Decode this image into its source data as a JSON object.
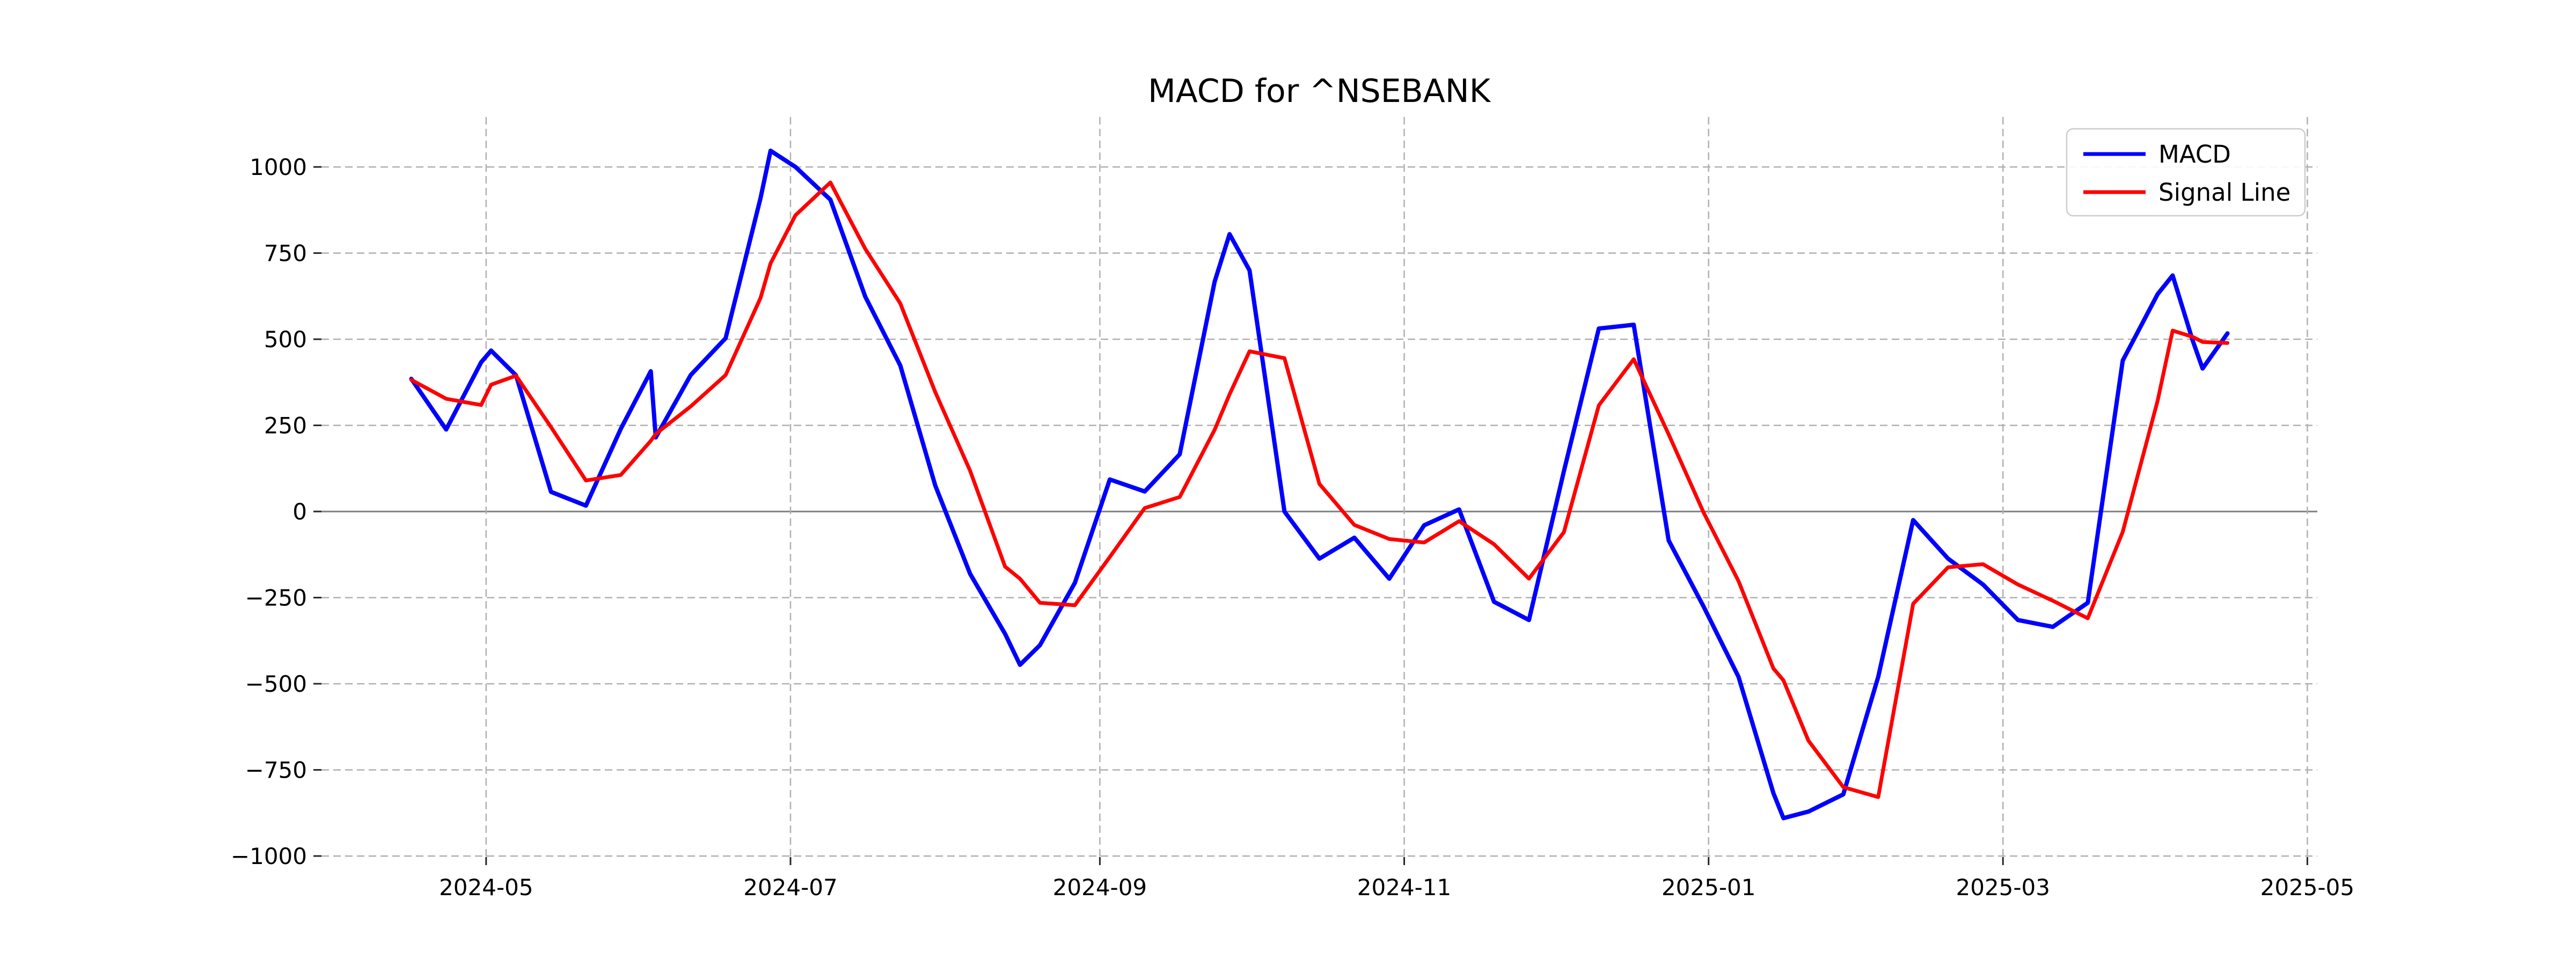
{
  "chart_data": {
    "type": "line",
    "title": "MACD for ^NSEBANK",
    "xlabel": "",
    "ylabel": "",
    "grid": "dashed",
    "zero_line": true,
    "legend_position": "upper right",
    "xlim": [
      "2024-03-29",
      "2025-05-03"
    ],
    "ylim": [
      -1003,
      1145
    ],
    "colors": {
      "macd": "#0000ff",
      "signal": "#ff0000",
      "grid": "#b0b0b0",
      "zero_line": "#7f7f7f",
      "background": "#ffffff",
      "text": "#000000",
      "legend_border": "#cccccc"
    },
    "y_ticks": {
      "values": [
        1000,
        750,
        500,
        250,
        0,
        -250,
        -500,
        -750,
        -1000
      ],
      "labels": [
        "1000",
        "750",
        "500",
        "250",
        "0",
        "−250",
        "−500",
        "−750",
        "−1000"
      ]
    },
    "x_ticks": [
      {
        "date": "2024-05-01",
        "label": "2024-05"
      },
      {
        "date": "2024-07-01",
        "label": "2024-07"
      },
      {
        "date": "2024-09-01",
        "label": "2024-09"
      },
      {
        "date": "2024-11-01",
        "label": "2024-11"
      },
      {
        "date": "2025-01-01",
        "label": "2025-01"
      },
      {
        "date": "2025-03-01",
        "label": "2025-03"
      },
      {
        "date": "2025-05-01",
        "label": "2025-05"
      }
    ],
    "x": [
      "2024-04-16",
      "2024-04-23",
      "2024-04-30",
      "2024-05-02",
      "2024-05-07",
      "2024-05-14",
      "2024-05-21",
      "2024-05-28",
      "2024-06-03",
      "2024-06-04",
      "2024-06-11",
      "2024-06-18",
      "2024-06-25",
      "2024-06-27",
      "2024-07-02",
      "2024-07-09",
      "2024-07-16",
      "2024-07-23",
      "2024-07-30",
      "2024-08-06",
      "2024-08-13",
      "2024-08-16",
      "2024-08-20",
      "2024-08-27",
      "2024-09-03",
      "2024-09-10",
      "2024-09-17",
      "2024-09-24",
      "2024-09-27",
      "2024-10-01",
      "2024-10-08",
      "2024-10-15",
      "2024-10-22",
      "2024-10-29",
      "2024-11-05",
      "2024-11-12",
      "2024-11-19",
      "2024-11-26",
      "2024-12-03",
      "2024-12-10",
      "2024-12-17",
      "2024-12-24",
      "2024-12-31",
      "2025-01-07",
      "2025-01-14",
      "2025-01-16",
      "2025-01-21",
      "2025-01-28",
      "2025-02-04",
      "2025-02-11",
      "2025-02-18",
      "2025-02-25",
      "2025-03-04",
      "2025-03-11",
      "2025-03-18",
      "2025-03-25",
      "2025-04-01",
      "2025-04-04",
      "2025-04-08",
      "2025-04-10",
      "2025-04-15"
    ],
    "series": [
      {
        "name": "MACD",
        "color": "#0000ff",
        "line_width": 8,
        "values": [
          385,
          238,
          433,
          467,
          395,
          57,
          17,
          240,
          407,
          215,
          396,
          503,
          910,
          1047,
          1000,
          905,
          623,
          424,
          76,
          -181,
          -355,
          -445,
          -388,
          -207,
          93,
          58,
          166,
          667,
          805,
          700,
          0,
          -137,
          -76,
          -195,
          -40,
          6,
          -262,
          -315,
          117,
          531,
          542,
          -84,
          -276,
          -480,
          -818,
          -890,
          -871,
          -821,
          -480,
          -25,
          -137,
          -212,
          -315,
          -335,
          -265,
          438,
          631,
          685,
          497,
          415,
          517
        ]
      },
      {
        "name": "Signal Line",
        "color": "#ff0000",
        "line_width": 7,
        "values": [
          382,
          327,
          309,
          368,
          394,
          245,
          90,
          106,
          205,
          225,
          305,
          396,
          620,
          720,
          860,
          955,
          762,
          604,
          347,
          118,
          -160,
          -195,
          -265,
          -272,
          -132,
          10,
          42,
          237,
          340,
          465,
          445,
          80,
          -39,
          -80,
          -90,
          -28,
          -95,
          -195,
          -60,
          308,
          442,
          224,
          -3,
          -202,
          -456,
          -490,
          -665,
          -800,
          -829,
          -268,
          -162,
          -153,
          -212,
          -259,
          -310,
          -59,
          322,
          525,
          507,
          492,
          489
        ]
      }
    ]
  }
}
